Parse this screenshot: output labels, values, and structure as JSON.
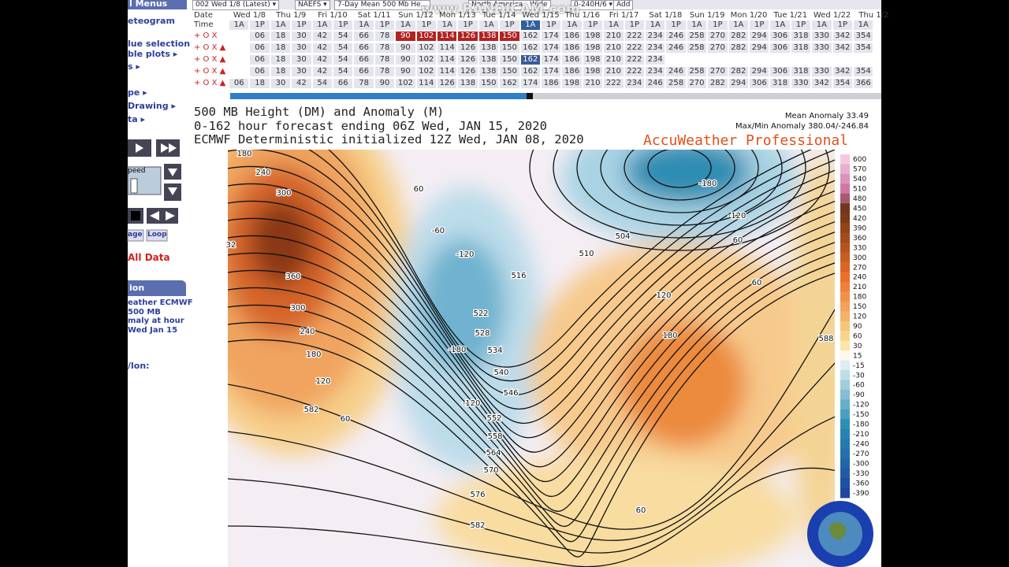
{
  "toolbar": {
    "items": [
      "002 Wed 1/8 (Latest) ▾",
      "NAEFS ▾",
      "7-Day Mean 500 Mb He...",
      "North America - Wide",
      "0-240H/6 ▾",
      "Add"
    ],
    "watermark": "www.BANDICAM.com"
  },
  "sidebar": {
    "menus": "l Menus",
    "meteogram": "eteogram",
    "value_selection": "lue selection",
    "table_plots": "ble plots ▸",
    "s": "s ▸",
    "type": "pe ▸",
    "drawing": "Drawing ▸",
    "data": "ta ▸",
    "speed": "peed",
    "image": "age",
    "loop": "Loop",
    "all_data": "All Data",
    "info_header": "ion",
    "info_lines": [
      "eather ECMWF",
      "500 MB",
      "maly at hour",
      "Wed Jan 15"
    ],
    "latlon": "/lon:"
  },
  "timeline": {
    "date_label": "Date",
    "time_label": "Time",
    "dates": [
      "Wed 1/8",
      "Thu 1/9",
      "Fri 1/10",
      "Sat 1/11",
      "Sun 1/12",
      "Mon 1/13",
      "Tue 1/14",
      "Wed 1/15",
      "Thu 1/16",
      "Fri 1/17",
      "Sat 1/18",
      "Sun 1/19",
      "Mon 1/20",
      "Tue 1/21",
      "Wed 1/22",
      "Thu 1/2"
    ],
    "times": [
      "1A",
      "1P",
      "1A",
      "1P",
      "1A",
      "1P",
      "1A",
      "1P",
      "1A",
      "1P",
      "1A",
      "1P",
      "1A",
      "1P",
      "1A",
      "1P",
      "1A",
      "1P",
      "1A",
      "1P",
      "1A",
      "1P",
      "1A",
      "1P",
      "1A",
      "1P",
      "1A",
      "1P",
      "1A",
      "1P",
      "1A"
    ],
    "current_time": 14,
    "rows": [
      {
        "label": "+ O X",
        "hours": [
          "06",
          "18",
          "30",
          "42",
          "54",
          "66",
          "78",
          "90",
          "102",
          "114",
          "126",
          "138",
          "150",
          "162",
          "174",
          "186",
          "198",
          "210",
          "222",
          "234",
          "246",
          "258",
          "270",
          "282",
          "294",
          "306",
          "318",
          "330",
          "342",
          "354"
        ],
        "highlight": [
          7,
          8,
          9,
          10,
          11,
          12
        ],
        "highlight_color": "#b22222"
      },
      {
        "label": "+ O X ▲",
        "hours": [
          "06",
          "18",
          "30",
          "42",
          "54",
          "66",
          "78",
          "90",
          "102",
          "114",
          "126",
          "138",
          "150",
          "162",
          "174",
          "186",
          "198",
          "210",
          "222",
          "234",
          "246",
          "258",
          "270",
          "282",
          "294",
          "306",
          "318",
          "330",
          "342",
          "354"
        ],
        "highlight": [],
        "highlight_color": "#b22222"
      },
      {
        "label": "+ O X ▲",
        "hours": [
          "06",
          "18",
          "30",
          "42",
          "54",
          "66",
          "78",
          "90",
          "102",
          "114",
          "126",
          "138",
          "150",
          "162",
          "174",
          "186",
          "198",
          "210",
          "222",
          "234"
        ],
        "highlight": [
          13
        ],
        "highlight_color": "#3a5a9a"
      },
      {
        "label": "+ O X ▲",
        "hours": [
          "06",
          "18",
          "30",
          "42",
          "54",
          "66",
          "78",
          "90",
          "102",
          "114",
          "126",
          "138",
          "150",
          "162",
          "174",
          "186",
          "198",
          "210",
          "222",
          "234",
          "246",
          "258",
          "270",
          "282",
          "294",
          "306",
          "318",
          "330",
          "342",
          "354"
        ],
        "highlight": [],
        "highlight_color": "#b22222"
      },
      {
        "label": "+ O X ▲",
        "hours": [
          "06",
          "18",
          "30",
          "42",
          "54",
          "66",
          "78",
          "90",
          "102",
          "114",
          "126",
          "138",
          "150",
          "162",
          "174",
          "186",
          "198",
          "210",
          "222",
          "234",
          "246",
          "258",
          "270",
          "282",
          "294",
          "306",
          "318",
          "330",
          "342",
          "354",
          "366"
        ],
        "highlight": [],
        "highlight_color": "#b22222"
      }
    ]
  },
  "map": {
    "title": [
      "500 MB Height (DM) and Anomaly (M)",
      "0-162 hour forecast ending 06Z Wed, JAN 15, 2020",
      "ECMWF Deterministic initialized 12Z Wed, JAN 08, 2020"
    ],
    "mean_anomaly": "Mean Anomaly 33.49",
    "max_min": "Max/Min Anomaly 380.04/-246.84",
    "brand": "AccuWeather Professional",
    "contour_labels": [
      "180",
      "240",
      "300",
      "32",
      "360",
      "300",
      "240",
      "180",
      "120",
      "582",
      "60",
      "60",
      "-60",
      "-120",
      "516",
      "522",
      "528",
      "534",
      "-180",
      "540",
      "546",
      "-120",
      "552",
      "558",
      "564",
      "570",
      "576",
      "582",
      "-180",
      "-120",
      "504",
      "510",
      "60",
      "60",
      "120",
      "180",
      "588",
      "60"
    ],
    "legend": [
      600,
      570,
      540,
      510,
      480,
      450,
      420,
      390,
      360,
      330,
      300,
      270,
      240,
      210,
      180,
      150,
      120,
      90,
      60,
      30,
      15,
      -15,
      -30,
      -60,
      -90,
      -120,
      -150,
      -180,
      -210,
      -240,
      -270,
      -300,
      -330,
      -360,
      -390
    ]
  }
}
